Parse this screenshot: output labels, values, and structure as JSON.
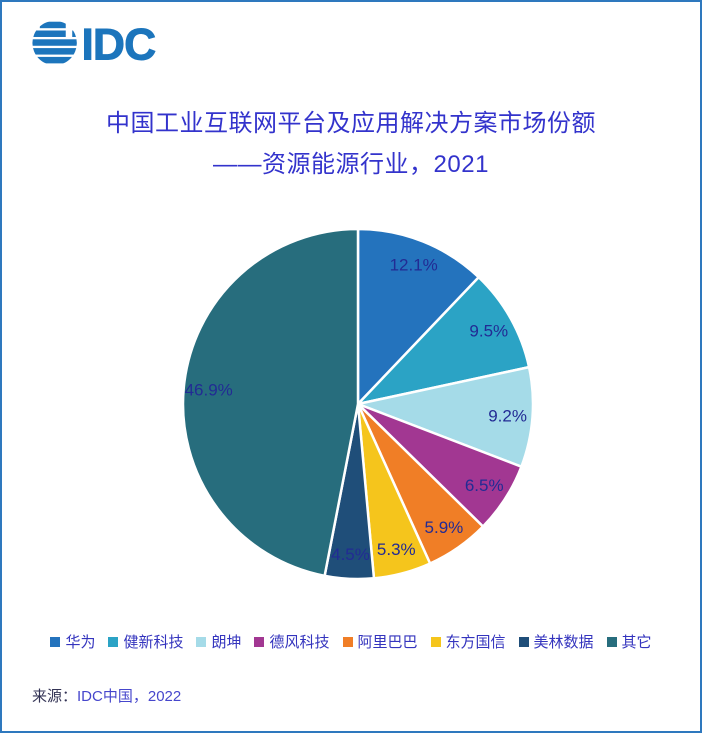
{
  "logo": {
    "text": "IDC",
    "color": "#1C75BC"
  },
  "title": {
    "line1": "中国工业互联网平台及应用解决方案市场份额",
    "line2": "——资源能源行业，2021"
  },
  "chart_data": {
    "type": "pie",
    "title": "中国工业互联网平台及应用解决方案市场份额——资源能源行业，2021",
    "unit": "%",
    "start_angle_deg": 0,
    "direction": "clockwise",
    "label_color": "#222B94",
    "legend_position": "bottom",
    "slices": [
      {
        "label": "华为",
        "value": 12.1,
        "color": "#2473BD"
      },
      {
        "label": "健新科技",
        "value": 9.5,
        "color": "#2BA3C5"
      },
      {
        "label": "朗坤",
        "value": 9.2,
        "color": "#A5DBE8"
      },
      {
        "label": "德风科技",
        "value": 6.5,
        "color": "#A23792"
      },
      {
        "label": "阿里巴巴",
        "value": 5.9,
        "color": "#F07E26"
      },
      {
        "label": "东方国信",
        "value": 5.3,
        "color": "#F5C51C"
      },
      {
        "label": "美林数据",
        "value": 4.5,
        "color": "#1F4E79"
      },
      {
        "label": "其它",
        "value": 46.9,
        "color": "#276D7D"
      }
    ]
  },
  "source": {
    "prefix": "来源：",
    "text": "IDC中国，2022"
  }
}
